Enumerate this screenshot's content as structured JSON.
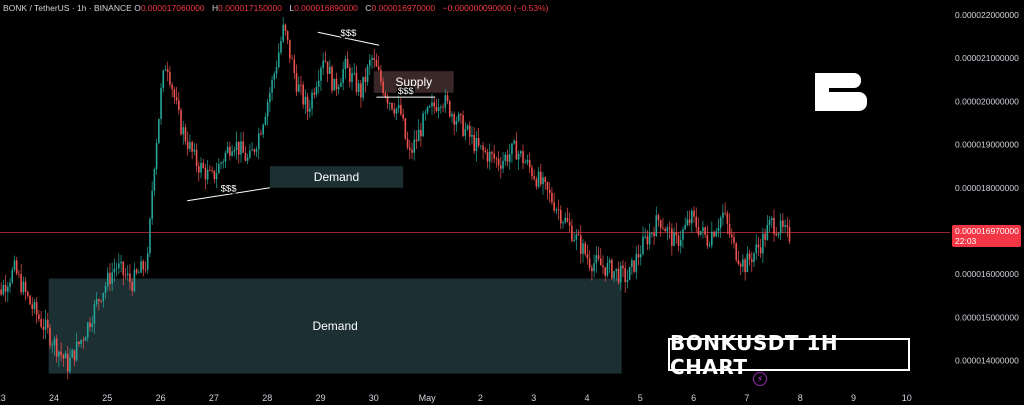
{
  "header": {
    "symbol": "BONK / TetherUS · 1h · BINANCE",
    "o_label": "O",
    "o_value": "0.000017060000",
    "h_label": "H",
    "h_value": "0.000017150000",
    "l_label": "L",
    "l_value": "0.000016890000",
    "c_label": "C",
    "c_value": "0.000016970000",
    "change": "−0.000000090000 (−0.53%)"
  },
  "title_badge": "BONKUSDT 1H CHART",
  "logo_letter": "B",
  "current_price": {
    "value": "0.000016970000",
    "countdown": "22:03"
  },
  "colors": {
    "bg": "#000000",
    "up": "#26a69a",
    "down": "#ef5350",
    "zone": "#1c2f33",
    "supply": "#3a2727",
    "price_line": "#f23645"
  },
  "icons": {
    "flash": "lightning-icon"
  },
  "chart_data": {
    "type": "candlestick",
    "title": "",
    "ylim": [
      1.35e-05,
      2.23e-05
    ],
    "y_ticks": [
      "0.000022000000",
      "0.000021000000",
      "0.000020000000",
      "0.000019000000",
      "0.000018000000",
      "0.000017000000",
      "0.000016000000",
      "0.000015000000",
      "0.000014000000"
    ],
    "y_tick_values": [
      2.2e-05,
      2.1e-05,
      2e-05,
      1.9e-05,
      1.8e-05,
      1.7e-05,
      1.6e-05,
      1.5e-05,
      1.4e-05
    ],
    "x_ticks": [
      "23",
      "24",
      "25",
      "26",
      "27",
      "28",
      "29",
      "30",
      "May",
      "2",
      "3",
      "4",
      "5",
      "6",
      "7",
      "8",
      "9",
      "10"
    ],
    "x_tick_days": [
      23,
      24,
      25,
      26,
      27,
      28,
      29,
      30,
      31,
      32,
      33,
      34,
      35,
      36,
      37,
      38,
      39,
      40
    ],
    "path": [
      [
        22.8,
        1.52e-05
      ],
      [
        23.3,
        1.61e-05
      ],
      [
        23.6,
        1.53e-05
      ],
      [
        24.0,
        1.45e-05
      ],
      [
        24.3,
        1.39e-05
      ],
      [
        24.6,
        1.46e-05
      ],
      [
        24.9,
        1.55e-05
      ],
      [
        25.2,
        1.62e-05
      ],
      [
        25.5,
        1.58e-05
      ],
      [
        25.8,
        1.63e-05
      ],
      [
        25.9,
        1.83e-05
      ],
      [
        26.05,
        2.02e-05
      ],
      [
        26.15,
        2.1e-05
      ],
      [
        26.4,
        1.95e-05
      ],
      [
        26.7,
        1.86e-05
      ],
      [
        27.0,
        1.82e-05
      ],
      [
        27.4,
        1.91e-05
      ],
      [
        27.7,
        1.86e-05
      ],
      [
        27.9,
        1.93e-05
      ],
      [
        28.15,
        2.05e-05
      ],
      [
        28.35,
        2.17e-05
      ],
      [
        28.6,
        2.04e-05
      ],
      [
        28.8,
        1.98e-05
      ],
      [
        29.1,
        2.11e-05
      ],
      [
        29.3,
        2.03e-05
      ],
      [
        29.5,
        2.08e-05
      ],
      [
        29.8,
        2.02e-05
      ],
      [
        30.0,
        2.1e-05
      ],
      [
        30.3,
        2.01e-05
      ],
      [
        30.55,
        1.97e-05
      ],
      [
        30.7,
        1.87e-05
      ],
      [
        31.0,
        1.96e-05
      ],
      [
        31.3,
        2.01e-05
      ],
      [
        31.6,
        1.96e-05
      ],
      [
        32.0,
        1.89e-05
      ],
      [
        32.4,
        1.86e-05
      ],
      [
        32.7,
        1.89e-05
      ],
      [
        33.0,
        1.84e-05
      ],
      [
        33.4,
        1.77e-05
      ],
      [
        33.8,
        1.69e-05
      ],
      [
        34.1,
        1.63e-05
      ],
      [
        34.5,
        1.61e-05
      ],
      [
        34.8,
        1.59e-05
      ],
      [
        35.1,
        1.67e-05
      ],
      [
        35.4,
        1.73e-05
      ],
      [
        35.7,
        1.67e-05
      ],
      [
        36.0,
        1.73e-05
      ],
      [
        36.3,
        1.68e-05
      ],
      [
        36.6,
        1.74e-05
      ],
      [
        36.8,
        1.66e-05
      ],
      [
        37.0,
        1.62e-05
      ],
      [
        37.3,
        1.67e-05
      ],
      [
        37.5,
        1.72e-05
      ],
      [
        37.7,
        1.7e-05
      ],
      [
        37.8,
        1.69e-05
      ]
    ],
    "zones": [
      {
        "label": "Demand",
        "x0": 23.9,
        "x1": 34.65,
        "y0": 1.37e-05,
        "y1": 1.59e-05,
        "kind": "demand"
      },
      {
        "label": "Demand",
        "x0": 28.05,
        "x1": 30.55,
        "y0": 1.8e-05,
        "y1": 1.85e-05,
        "kind": "demand"
      },
      {
        "label": "Supply",
        "x0": 30.0,
        "x1": 31.5,
        "y0": 2.02e-05,
        "y1": 2.07e-05,
        "kind": "supply"
      }
    ],
    "liquidity": [
      {
        "label": "$$$",
        "x0": 26.5,
        "y0": 1.77e-05,
        "x1": 28.05,
        "y1": 1.8e-05
      },
      {
        "label": "$$$",
        "x0": 28.95,
        "y0": 2.16e-05,
        "x1": 30.1,
        "y1": 2.13e-05
      },
      {
        "label": "$$$",
        "x0": 30.05,
        "y0": 2.01e-05,
        "x1": 31.15,
        "y1": 2.01e-05
      }
    ],
    "current_value": 1.697e-05
  }
}
